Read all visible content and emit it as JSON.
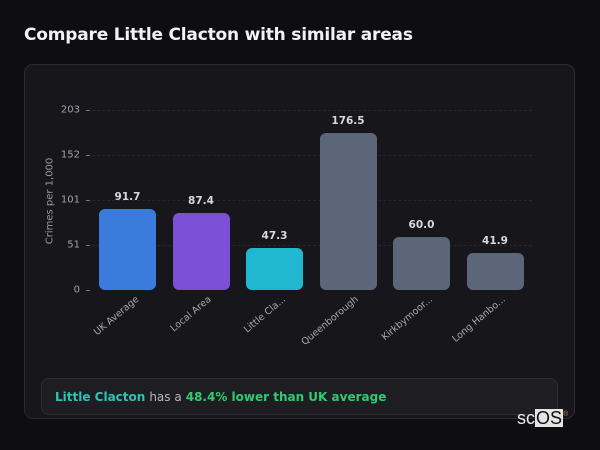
{
  "header": {
    "title": "Compare Little Clacton with similar areas"
  },
  "chart_data": {
    "type": "bar",
    "title": "Compare Little Clacton with similar areas",
    "xlabel": "",
    "ylabel": "Crimes per 1,000",
    "ylim": [
      0,
      203
    ],
    "yticks": [
      0,
      51,
      101,
      152,
      203
    ],
    "grid": true,
    "legend": null,
    "categories": [
      "UK Average",
      "Local Area",
      "Little Cla...",
      "Queenborough",
      "Kirkbymoor...",
      "Long Hanbo..."
    ],
    "values": [
      91.7,
      87.4,
      47.3,
      176.5,
      60.0,
      41.9
    ],
    "value_labels": [
      "91.7",
      "87.4",
      "47.3",
      "176.5",
      "60.0",
      "41.9"
    ],
    "colors": [
      "#3a7bdc",
      "#7b4fd6",
      "#1fb8d0",
      "#5b6679",
      "#5b6679",
      "#5b6679"
    ]
  },
  "summary": {
    "area": "Little Clacton",
    "connector": "has a",
    "stat": "48.4% lower than UK average"
  },
  "watermark": {
    "prefix": "sc",
    "highlight": "OS",
    "mark": "®"
  }
}
